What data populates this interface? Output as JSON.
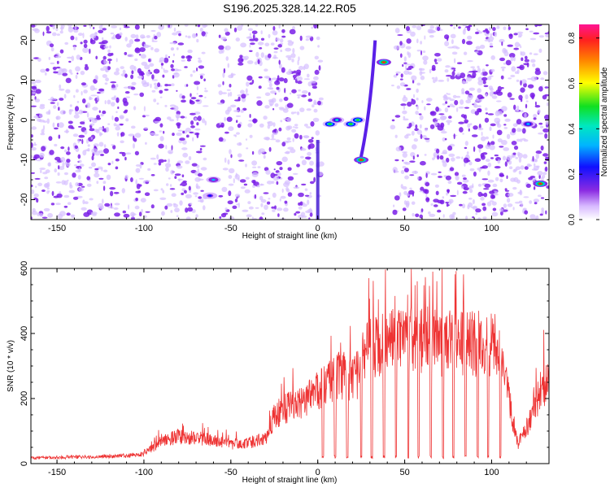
{
  "title": "S196.2025.328.14.22.R05",
  "colors": {
    "accent": "#ee3333",
    "speckle_light": "#d6bfff",
    "speckle_dark": "#7a1fe8"
  },
  "chart_data": [
    {
      "type": "heatmap",
      "name": "spectrogram",
      "xlabel": "Height of straight line (km)",
      "ylabel": "Frequency (Hz)",
      "xlim": [
        -165,
        133
      ],
      "ylim": [
        -25,
        24
      ],
      "xticks": [
        -150,
        -100,
        -50,
        0,
        50,
        100
      ],
      "yticks": [
        -20,
        -10,
        0,
        10,
        20
      ],
      "blank_regions_km": [
        [
          -64,
          -57
        ],
        [
          2,
          43
        ]
      ],
      "hotspots": [
        {
          "x": -60,
          "y": -15,
          "amplitude": 0.35
        },
        {
          "x": -62,
          "y": -19,
          "amplitude": 0.3
        },
        {
          "x": 7,
          "y": -1,
          "amplitude": 0.55
        },
        {
          "x": 11,
          "y": 0,
          "amplitude": 0.5
        },
        {
          "x": 19,
          "y": -1,
          "amplitude": 0.6
        },
        {
          "x": 23,
          "y": 0,
          "amplitude": 0.55
        },
        {
          "x": 25,
          "y": -10,
          "amplitude": 0.85
        },
        {
          "x": 38,
          "y": 14.5,
          "amplitude": 0.9
        },
        {
          "x": 121,
          "y": -1,
          "amplitude": 0.4
        },
        {
          "x": 128,
          "y": -16,
          "amplitude": 0.85
        }
      ],
      "colorbar": {
        "label": "Normalized spectral amplitude",
        "ticks": [
          0.0,
          0.2,
          0.4,
          0.6,
          0.8
        ],
        "tick_labels": [
          "0.0",
          "0.2",
          "0.4",
          "0.6",
          "0.8"
        ],
        "range": [
          0,
          0.86
        ]
      }
    },
    {
      "type": "line",
      "name": "snr",
      "xlabel": "Height of straight line (km)",
      "ylabel": "SNR (10 * v/v)",
      "xlim": [
        -165,
        133
      ],
      "ylim": [
        0,
        600
      ],
      "xticks": [
        -150,
        -100,
        -50,
        0,
        50,
        100
      ],
      "yticks": [
        0,
        200,
        400,
        600
      ],
      "series": [
        {
          "name": "SNR",
          "x": [
            -165,
            -150,
            -130,
            -110,
            -100,
            -90,
            -80,
            -70,
            -60,
            -50,
            -40,
            -30,
            -25,
            -20,
            -15,
            -10,
            -5,
            0,
            5,
            10,
            15,
            20,
            25,
            30,
            40,
            50,
            60,
            70,
            80,
            90,
            100,
            105,
            110,
            115,
            120,
            125,
            130
          ],
          "values": [
            18,
            20,
            22,
            25,
            30,
            70,
            85,
            80,
            75,
            60,
            65,
            80,
            150,
            170,
            180,
            190,
            210,
            230,
            250,
            270,
            280,
            260,
            300,
            370,
            380,
            385,
            390,
            380,
            385,
            380,
            375,
            370,
            200,
            60,
            110,
            190,
            250
          ]
        }
      ]
    }
  ]
}
